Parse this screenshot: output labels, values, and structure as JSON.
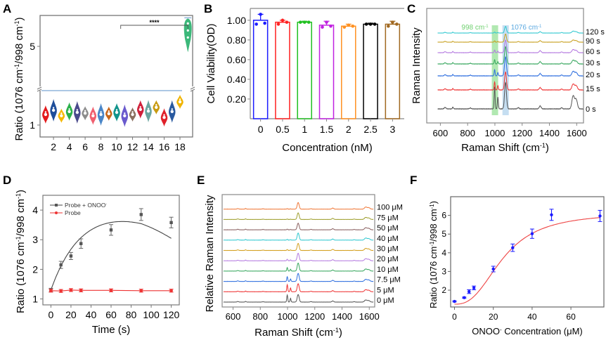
{
  "chart_data": [
    {
      "panel": "A",
      "type": "violin",
      "title": "",
      "xlabel": "",
      "ylabel": "Ratio (1076 cm-1/998 cm-1)",
      "ylabel_parts": [
        "Ratio (1076 cm",
        "-1",
        "/998 cm",
        "-1",
        ")"
      ],
      "xticks": [
        "2",
        "4",
        "6",
        "8",
        "10",
        "12",
        "14",
        "16",
        "18"
      ],
      "yticks": [
        "1",
        "5"
      ],
      "axis_break": true,
      "significance": {
        "from": 10.5,
        "to": 19,
        "label": "****"
      },
      "threshold_line_color": "#7aa6d4",
      "groups": [
        {
          "x": 1,
          "median": 1.25,
          "color": "#e31a1c"
        },
        {
          "x": 2,
          "median": 1.35,
          "color": "#1f4e9a"
        },
        {
          "x": 3,
          "median": 1.22,
          "color": "#f5b800"
        },
        {
          "x": 4,
          "median": 1.32,
          "color": "#2bb04a"
        },
        {
          "x": 5,
          "median": 1.3,
          "color": "#4a4a8c"
        },
        {
          "x": 6,
          "median": 1.28,
          "color": "#8c8c8c"
        },
        {
          "x": 7,
          "median": 1.22,
          "color": "#f06070"
        },
        {
          "x": 8,
          "median": 1.25,
          "color": "#4a86c8"
        },
        {
          "x": 9,
          "median": 1.27,
          "color": "#c8661a"
        },
        {
          "x": 10,
          "median": 1.3,
          "color": "#12948c"
        },
        {
          "x": 11,
          "median": 1.22,
          "color": "#6a5acd"
        },
        {
          "x": 12,
          "median": 1.25,
          "color": "#8a7060"
        },
        {
          "x": 13,
          "median": 1.37,
          "color": "#d0203a"
        },
        {
          "x": 14,
          "median": 1.33,
          "color": "#6aa6a0"
        },
        {
          "x": 15,
          "median": 1.42,
          "color": "#c89a10"
        },
        {
          "x": 16,
          "median": 1.18,
          "color": "#e0202a"
        },
        {
          "x": 17,
          "median": 1.32,
          "color": "#2a5aa0"
        },
        {
          "x": 18,
          "median": 1.55,
          "color": "#f0b400"
        },
        {
          "x": 19,
          "median": 5.8,
          "color": "#3cb87a"
        }
      ]
    },
    {
      "panel": "B",
      "type": "bar",
      "title": "",
      "xlabel": "Concentration (nM)",
      "ylabel": "Cell Viability(OD)",
      "categories": [
        "0",
        "0.5",
        "1",
        "1.5",
        "2",
        "2.5",
        "3"
      ],
      "values": [
        1.0,
        0.98,
        0.98,
        0.95,
        0.94,
        0.96,
        0.96
      ],
      "errors": [
        0.06,
        0.02,
        0.01,
        0.04,
        0.02,
        0.01,
        0.03
      ],
      "points": [
        [
          0.96,
          1.06,
          0.97
        ],
        [
          0.96,
          1.0,
          0.98
        ],
        [
          0.98,
          0.98,
          0.98
        ],
        [
          0.93,
          0.98,
          0.94
        ],
        [
          0.93,
          0.95,
          0.94
        ],
        [
          0.96,
          0.96,
          0.96
        ],
        [
          0.94,
          0.98,
          0.96
        ]
      ],
      "colors": [
        "#1a1aff",
        "#ff2020",
        "#20c020",
        "#c020e0",
        "#ff9020",
        "#000000",
        "#a06820"
      ],
      "yticks": [
        "0.20",
        "0.40",
        "0.60",
        "0.80",
        "1.00"
      ],
      "ylim": [
        0,
        1.12
      ]
    },
    {
      "panel": "C",
      "type": "line",
      "title": "",
      "xlabel": "Raman Shift (cm-1)",
      "xlabel_parts": [
        "Raman Shift (cm",
        "-1",
        ")"
      ],
      "ylabel": "Raman Intensity",
      "xticks": [
        "600",
        "800",
        "1000",
        "1200",
        "1400",
        "1600"
      ],
      "xlim": [
        500,
        1650
      ],
      "highlights": [
        {
          "center": 998,
          "label": "998 cm-1",
          "label_parts": [
            "998 cm",
            "-1"
          ],
          "color": "#7dd87d"
        },
        {
          "center": 1076,
          "label": "1076 cm-1",
          "label_parts": [
            "1076 cm",
            "-1"
          ],
          "color": "#9ec8e8"
        }
      ],
      "series": [
        {
          "name": "0 s",
          "color": "#555555",
          "p998": 1.0,
          "p1076": 1.0,
          "p1580": 0.8
        },
        {
          "name": "15 s",
          "color": "#ee3333",
          "p998": 0.45,
          "p1076": 0.85,
          "p1580": 0.45
        },
        {
          "name": "20 s",
          "color": "#2f6fdf",
          "p998": 0.35,
          "p1076": 0.9,
          "p1580": 0.35
        },
        {
          "name": "30 s",
          "color": "#3aa860",
          "p998": 0.25,
          "p1076": 0.85,
          "p1580": 0.3
        },
        {
          "name": "60 s",
          "color": "#b57be0",
          "p998": 0.18,
          "p1076": 0.7,
          "p1580": 0.28
        },
        {
          "name": "90 s",
          "color": "#c8a020",
          "p998": 0.12,
          "p1076": 0.6,
          "p1580": 0.25
        },
        {
          "name": "120 s",
          "color": "#30c8d0",
          "p998": 0.1,
          "p1076": 0.55,
          "p1580": 0.25
        }
      ]
    },
    {
      "panel": "D",
      "type": "line",
      "title": "",
      "xlabel": "Time (s)",
      "ylabel": "Ratio (1076 cm-1/998 cm-1)",
      "ylabel_parts": [
        "Ratio (1076 cm",
        "-1",
        "/998 cm",
        "-1",
        ")"
      ],
      "xticks": [
        "0",
        "20",
        "40",
        "60",
        "80",
        "100",
        "120"
      ],
      "yticks": [
        "1",
        "2",
        "3",
        "4"
      ],
      "xlim": [
        -8,
        128
      ],
      "ylim": [
        0.8,
        4.5
      ],
      "legend": "top-left",
      "series": [
        {
          "name": "Probe + ONOO-",
          "name_parts": [
            "Probe + ONOO",
            "-"
          ],
          "color": "#444444",
          "x": [
            0,
            10,
            20,
            30,
            60,
            90,
            120
          ],
          "y": [
            1.3,
            2.15,
            2.45,
            2.87,
            3.33,
            3.85,
            3.58
          ],
          "err": [
            0.06,
            0.12,
            0.12,
            0.16,
            0.18,
            0.2,
            0.18
          ]
        },
        {
          "name": "Probe",
          "color": "#ee3333",
          "x": [
            0,
            10,
            20,
            30,
            60,
            90,
            120
          ],
          "y": [
            1.28,
            1.27,
            1.3,
            1.29,
            1.29,
            1.28,
            1.28
          ],
          "err": [
            0.05,
            0.05,
            0.05,
            0.05,
            0.05,
            0.05,
            0.05
          ]
        }
      ]
    },
    {
      "panel": "E",
      "type": "line",
      "title": "",
      "xlabel": "Raman Shift (cm-1)",
      "xlabel_parts": [
        "Raman Shift (cm",
        "-1",
        ")"
      ],
      "ylabel": "Relative Raman Intensity",
      "xticks": [
        "600",
        "800",
        "1000",
        "1200",
        "1400",
        "1600"
      ],
      "xlim": [
        520,
        1640
      ],
      "series": [
        {
          "name": "0 μM",
          "color": "#555555",
          "p998": 0.9,
          "p1076": 0.8
        },
        {
          "name": "5 μM",
          "color": "#ee3333",
          "p998": 0.9,
          "p1076": 0.85
        },
        {
          "name": "7.5 μM",
          "color": "#2f6fdf",
          "p998": 0.6,
          "p1076": 0.85
        },
        {
          "name": "10 μM",
          "color": "#3aa860",
          "p998": 0.45,
          "p1076": 0.85
        },
        {
          "name": "20 μM",
          "color": "#b57be0",
          "p998": 0.2,
          "p1076": 0.8
        },
        {
          "name": "30 μM",
          "color": "#d4a020",
          "p998": 0.12,
          "p1076": 0.75
        },
        {
          "name": "40 μM",
          "color": "#30c8d0",
          "p998": 0.1,
          "p1076": 0.75
        },
        {
          "name": "50 μM",
          "color": "#8a6060",
          "p998": 0.08,
          "p1076": 0.7
        },
        {
          "name": "75 μM",
          "color": "#a0a030",
          "p998": 0.06,
          "p1076": 0.7
        },
        {
          "name": "100 μM",
          "color": "#f07838",
          "p998": 0.06,
          "p1076": 0.7
        }
      ]
    },
    {
      "panel": "F",
      "type": "scatter",
      "title": "",
      "xlabel": "ONOO- Concentration (μM)",
      "xlabel_parts": [
        "ONOO",
        "-",
        " Concentration (μM)"
      ],
      "ylabel": "Ratio (1076 cm-1/998 cm-1)",
      "ylabel_parts": [
        "Ratio (1076 cm",
        "-1",
        "/998 cm",
        "-1",
        ")"
      ],
      "xticks": [
        "0",
        "20",
        "40",
        "60"
      ],
      "yticks": [
        "2",
        "3",
        "4",
        "5",
        "6"
      ],
      "xlim": [
        -2,
        77
      ],
      "ylim": [
        1.1,
        7.0
      ],
      "points_color": "#1a1aff",
      "fit_color": "#ee4444",
      "x": [
        0,
        5,
        7.5,
        10,
        20,
        30,
        40,
        50,
        75
      ],
      "y": [
        1.4,
        1.6,
        1.92,
        2.12,
        3.13,
        4.27,
        5.02,
        6.03,
        5.97
      ],
      "err": [
        0.03,
        0.03,
        0.1,
        0.1,
        0.15,
        0.2,
        0.25,
        0.3,
        0.3
      ],
      "fit": {
        "model": "sigmoid",
        "bottom": 1.25,
        "top": 6.15,
        "x50": 25,
        "slope": 2.6
      }
    }
  ],
  "panel_labels": [
    "A",
    "B",
    "C",
    "D",
    "E",
    "F"
  ]
}
